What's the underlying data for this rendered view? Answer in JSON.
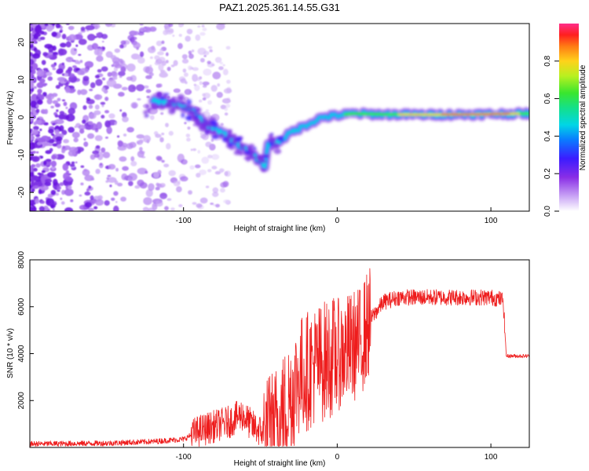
{
  "chart_data": [
    {
      "type": "heatmap",
      "title": "PAZ1.2025.361.14.55.G31",
      "xlabel": "Height of straight line (km)",
      "ylabel": "Frequency (Hz)",
      "xlim": [
        -200,
        125
      ],
      "ylim": [
        -25,
        25
      ],
      "xticks": [
        -100,
        0,
        100
      ],
      "yticks": [
        -20,
        -10,
        0,
        10,
        20
      ],
      "colorbar": {
        "label": "Normalized spectral amplitude",
        "range": [
          0,
          1
        ],
        "ticks": [
          "0.0",
          "0.2",
          "0.4",
          "0.6",
          "0.8"
        ]
      },
      "ridge": {
        "description_points": [
          {
            "x": -120,
            "y": 4.5
          },
          {
            "x": -105,
            "y": 3.5
          },
          {
            "x": -95,
            "y": 2
          },
          {
            "x": -85,
            "y": -2
          },
          {
            "x": -75,
            "y": -4
          },
          {
            "x": -65,
            "y": -7
          },
          {
            "x": -55,
            "y": -10
          },
          {
            "x": -47,
            "y": -13
          },
          {
            "x": -45,
            "y": -7
          },
          {
            "x": -38,
            "y": -6.5
          },
          {
            "x": -30,
            "y": -4
          },
          {
            "x": -20,
            "y": -2
          },
          {
            "x": -10,
            "y": 0
          },
          {
            "x": 0,
            "y": 0.5
          },
          {
            "x": 10,
            "y": 1
          },
          {
            "x": 30,
            "y": 0.8
          },
          {
            "x": 60,
            "y": 0.7
          },
          {
            "x": 90,
            "y": 0.8
          },
          {
            "x": 120,
            "y": 1
          }
        ]
      }
    },
    {
      "type": "line",
      "xlabel": "Height of straight line (km)",
      "ylabel": "SNR (10 * v/v)",
      "xlim": [
        -200,
        125
      ],
      "ylim": [
        0,
        8000
      ],
      "xticks": [
        -100,
        0,
        100
      ],
      "yticks": [
        2000,
        4000,
        6000,
        8000
      ],
      "series": [
        {
          "name": "SNR",
          "color": "#ee1c1c",
          "envelope": [
            {
              "x": -200,
              "y": 150
            },
            {
              "x": -150,
              "y": 180
            },
            {
              "x": -120,
              "y": 250
            },
            {
              "x": -100,
              "y": 350
            },
            {
              "x": -90,
              "y": 700
            },
            {
              "x": -80,
              "y": 900
            },
            {
              "x": -70,
              "y": 1100
            },
            {
              "x": -62,
              "y": 1400
            },
            {
              "x": -55,
              "y": 900
            },
            {
              "x": -45,
              "y": 500
            },
            {
              "x": -35,
              "y": 1500
            },
            {
              "x": -25,
              "y": 3000
            },
            {
              "x": -15,
              "y": 3500
            },
            {
              "x": -5,
              "y": 3800
            },
            {
              "x": 5,
              "y": 4100
            },
            {
              "x": 15,
              "y": 4500
            },
            {
              "x": 22,
              "y": 5500
            },
            {
              "x": 30,
              "y": 6200
            },
            {
              "x": 40,
              "y": 6400
            },
            {
              "x": 60,
              "y": 6400
            },
            {
              "x": 80,
              "y": 6400
            },
            {
              "x": 100,
              "y": 6400
            },
            {
              "x": 108,
              "y": 6300
            },
            {
              "x": 110,
              "y": 3900
            },
            {
              "x": 125,
              "y": 3900
            }
          ]
        }
      ]
    }
  ],
  "colors": {
    "line": "#ee1c1c",
    "axis": "#000000",
    "background": "#ffffff"
  }
}
